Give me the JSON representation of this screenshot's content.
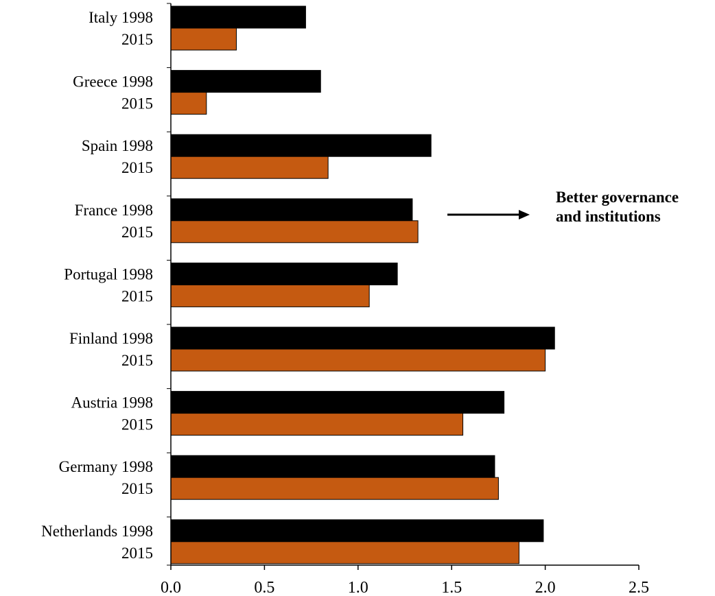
{
  "chart_data": {
    "type": "bar",
    "orientation": "horizontal",
    "categories": [
      "Italy",
      "Greece",
      "Spain",
      "France",
      "Portugal",
      "Finland",
      "Austria",
      "Germany",
      "Netherlands"
    ],
    "series": [
      {
        "name": "1998",
        "color": "#000000",
        "values": [
          0.72,
          0.8,
          1.39,
          1.29,
          1.21,
          2.05,
          1.78,
          1.73,
          1.99
        ]
      },
      {
        "name": "2015",
        "color": "#c55a11",
        "values": [
          0.35,
          0.19,
          0.84,
          1.32,
          1.06,
          2.0,
          1.56,
          1.75,
          1.86
        ]
      }
    ],
    "xlim": [
      0.0,
      2.5
    ],
    "xticks": [
      "0.0",
      "0.5",
      "1.0",
      "1.5",
      "2.0",
      "2.5"
    ],
    "grid": false,
    "annotation": {
      "line1": "Better governance",
      "line2": "and institutions",
      "arrow": "right"
    }
  }
}
